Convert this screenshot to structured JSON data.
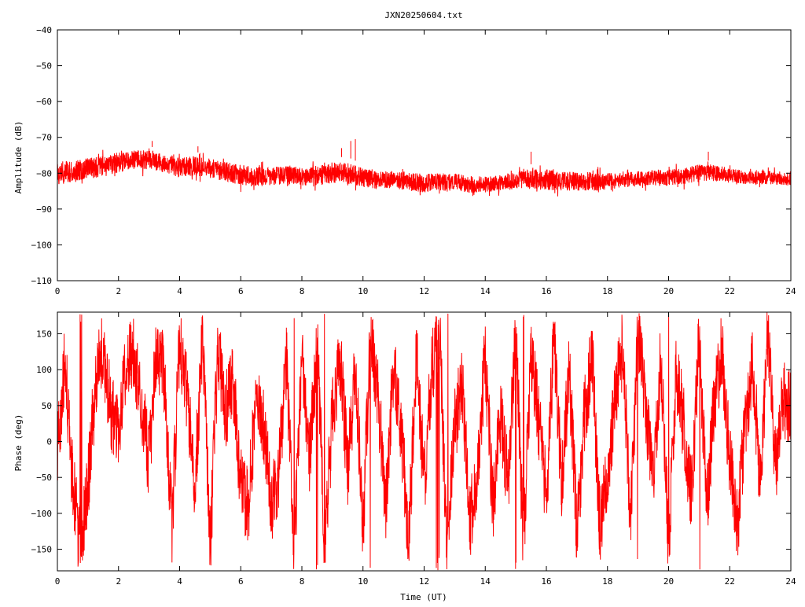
{
  "window": {
    "title": "JXN20250604.txt"
  },
  "chart_data": [
    {
      "type": "line",
      "name": "amplitude-plot",
      "title": "JXN20250604.txt",
      "xlabel": "",
      "ylabel": "Amplitude (dB)",
      "xlim": [
        0,
        24
      ],
      "ylim": [
        -110,
        -40
      ],
      "xticks": [
        0,
        2,
        4,
        6,
        8,
        10,
        12,
        14,
        16,
        18,
        20,
        22,
        24
      ],
      "yticks": [
        -110,
        -100,
        -90,
        -80,
        -70,
        -60,
        -50,
        -40
      ],
      "grid": false,
      "series_color": "#ff0000",
      "envelope": {
        "x": [
          0,
          0.5,
          1,
          1.5,
          2,
          2.5,
          3,
          3.5,
          4,
          4.5,
          5,
          5.5,
          6,
          6.5,
          7,
          7.5,
          8,
          8.5,
          9,
          9.5,
          10,
          10.5,
          11,
          11.5,
          12,
          12.5,
          13,
          13.5,
          14,
          14.5,
          15,
          15.5,
          16,
          16.5,
          17,
          17.5,
          18,
          18.5,
          19,
          19.5,
          20,
          20.5,
          21,
          21.5,
          22,
          22.5,
          23,
          23.5,
          24
        ],
        "upper": [
          -75.5,
          -75,
          -74.5,
          -74,
          -73,
          -72.5,
          -72.5,
          -73.5,
          -74.5,
          -74,
          -75,
          -75.5,
          -76.5,
          -77,
          -77,
          -77,
          -77.5,
          -77,
          -75.5,
          -75.5,
          -77.5,
          -78,
          -78.5,
          -78.5,
          -79,
          -79,
          -79,
          -79.5,
          -80,
          -79.5,
          -78.5,
          -77.5,
          -77.5,
          -78.5,
          -78.5,
          -79,
          -79,
          -79,
          -78.5,
          -78,
          -78,
          -77.5,
          -76.5,
          -76.5,
          -77.5,
          -78.5,
          -78.5,
          -78.5,
          -79
        ],
        "lower": [
          -84.5,
          -84,
          -83,
          -82,
          -81,
          -80,
          -80,
          -81,
          -82.5,
          -82,
          -82.5,
          -83.5,
          -84.5,
          -85,
          -84.5,
          -84,
          -84.5,
          -85,
          -84,
          -84,
          -85,
          -85.5,
          -85.5,
          -86,
          -86.5,
          -86,
          -86,
          -86.5,
          -86.5,
          -86,
          -85.5,
          -85.5,
          -86,
          -86,
          -86,
          -86,
          -85.5,
          -85,
          -84.5,
          -84.5,
          -84.5,
          -84,
          -83.5,
          -83,
          -83.5,
          -84,
          -84,
          -84,
          -84.5
        ]
      },
      "spikes": [
        {
          "x": 3.1,
          "y": -71
        },
        {
          "x": 4.6,
          "y": -72.5
        },
        {
          "x": 9.3,
          "y": -73
        },
        {
          "x": 9.6,
          "y": -71
        },
        {
          "x": 9.75,
          "y": -70.5
        },
        {
          "x": 15.5,
          "y": -74
        },
        {
          "x": 21.3,
          "y": -74
        }
      ]
    },
    {
      "type": "line",
      "name": "phase-plot",
      "title": "",
      "xlabel": "Time (UT)",
      "ylabel": "Phase (deg)",
      "xlim": [
        0,
        24
      ],
      "ylim": [
        -180,
        180
      ],
      "xticks": [
        0,
        2,
        4,
        6,
        8,
        10,
        12,
        14,
        16,
        18,
        20,
        22,
        24
      ],
      "yticks": [
        -150,
        -100,
        -50,
        0,
        50,
        100,
        150
      ],
      "grid": false,
      "series_color": "#ff0000",
      "trend": {
        "x": [
          0,
          0.25,
          0.5,
          0.75,
          1,
          1.25,
          1.5,
          1.75,
          2,
          2.25,
          2.5,
          2.75,
          3,
          3.25,
          3.5,
          3.75,
          4,
          4.25,
          4.5,
          4.75,
          5,
          5.25,
          5.5,
          5.75,
          6,
          6.25,
          6.5,
          6.75,
          7,
          7.25,
          7.5,
          7.75,
          8,
          8.25,
          8.5,
          8.75,
          9,
          9.25,
          9.5,
          9.75,
          10,
          10.25,
          10.5,
          10.75,
          11,
          11.25,
          11.5,
          11.75,
          12,
          12.25,
          12.5,
          12.75,
          13,
          13.25,
          13.5,
          13.75,
          14,
          14.25,
          14.5,
          14.75,
          15,
          15.25,
          15.5,
          15.75,
          16,
          16.25,
          16.5,
          16.75,
          17,
          17.25,
          17.5,
          17.75,
          18,
          18.25,
          18.5,
          18.75,
          19,
          19.25,
          19.5,
          19.75,
          20,
          20.25,
          20.5,
          20.75,
          21,
          21.25,
          21.5,
          21.75,
          22,
          22.25,
          22.5,
          22.75,
          23,
          23.25,
          23.5,
          23.75,
          24
        ],
        "y": [
          -20,
          120,
          -60,
          -150,
          -60,
          80,
          130,
          40,
          20,
          110,
          120,
          60,
          -30,
          130,
          90,
          -120,
          140,
          60,
          -60,
          150,
          -150,
          130,
          40,
          90,
          -60,
          -90,
          60,
          20,
          -90,
          -40,
          110,
          -160,
          120,
          -30,
          150,
          -150,
          40,
          120,
          -40,
          100,
          -120,
          150,
          60,
          -90,
          110,
          20,
          -140,
          130,
          -60,
          100,
          160,
          -150,
          20,
          80,
          -110,
          -40,
          120,
          -90,
          40,
          -60,
          150,
          -150,
          120,
          30,
          -80,
          150,
          -60,
          100,
          -130,
          40,
          120,
          -120,
          -40,
          60,
          130,
          -100,
          160,
          40,
          -60,
          120,
          -150,
          100,
          20,
          -80,
          150,
          -90,
          60,
          130,
          -30,
          -120,
          20,
          110,
          -60,
          150,
          -40,
          60,
          50
        ],
        "noise_deg": 55
      },
      "wraps_per_hour": 4
    }
  ]
}
